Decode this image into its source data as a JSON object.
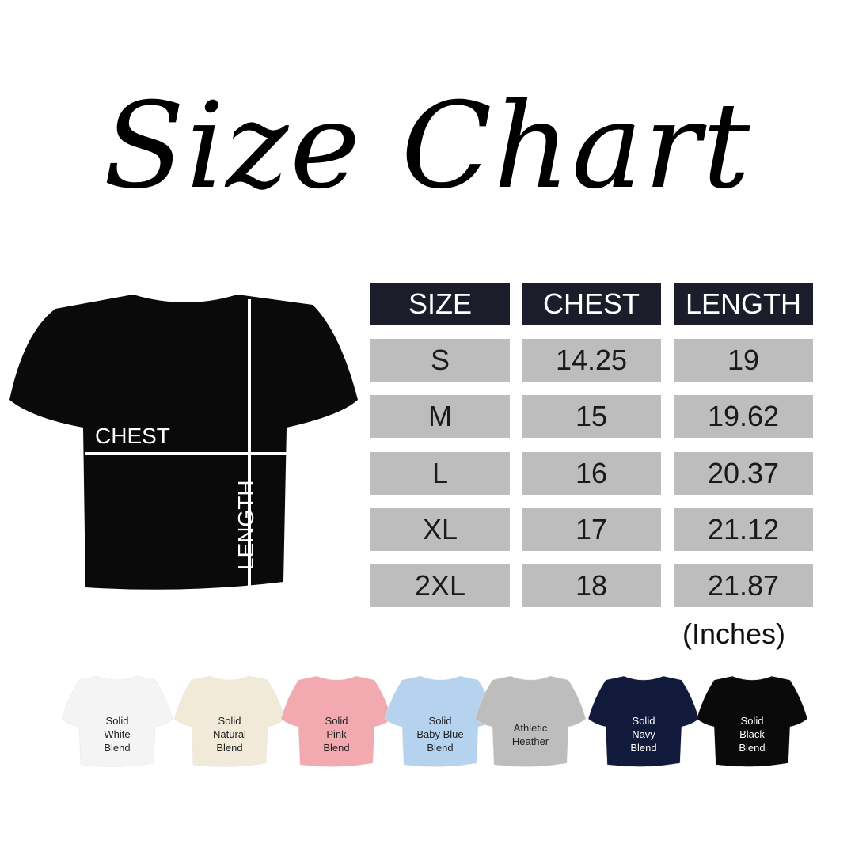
{
  "title": "Size Chart",
  "diagram": {
    "chest_label": "CHEST",
    "length_label": "LENGTH",
    "shirt_color": "#0a0a0a"
  },
  "table": {
    "headers": [
      "SIZE",
      "CHEST",
      "LENGTH"
    ],
    "rows": [
      [
        "S",
        "14.25",
        "19"
      ],
      [
        "M",
        "15",
        "19.62"
      ],
      [
        "L",
        "16",
        "20.37"
      ],
      [
        "XL",
        "17",
        "21.12"
      ],
      [
        "2XL",
        "18",
        "21.87"
      ]
    ],
    "units": "(Inches)",
    "header_color": "#1c1d2b",
    "cell_color": "#bdbdbd"
  },
  "colors": [
    {
      "lines": [
        "Solid",
        "White",
        "Blend"
      ],
      "color": "#f4f4f4",
      "text": "#222"
    },
    {
      "lines": [
        "Solid",
        "Natural",
        "Blend"
      ],
      "color": "#f1ead8",
      "text": "#222"
    },
    {
      "lines": [
        "Solid",
        "Pink",
        "Blend"
      ],
      "color": "#f2a9b0",
      "text": "#222"
    },
    {
      "lines": [
        "Solid",
        "Baby Blue",
        "Blend"
      ],
      "color": "#b5d2ee",
      "text": "#222"
    },
    {
      "lines": [
        "Athletic",
        "Heather"
      ],
      "color": "#bdbdbd",
      "text": "#222"
    },
    {
      "lines": [
        "Solid",
        "Navy",
        "Blend"
      ],
      "color": "#111a3a",
      "text": "#fff"
    },
    {
      "lines": [
        "Solid",
        "Black",
        "Blend"
      ],
      "color": "#0a0a0a",
      "text": "#fff"
    }
  ]
}
